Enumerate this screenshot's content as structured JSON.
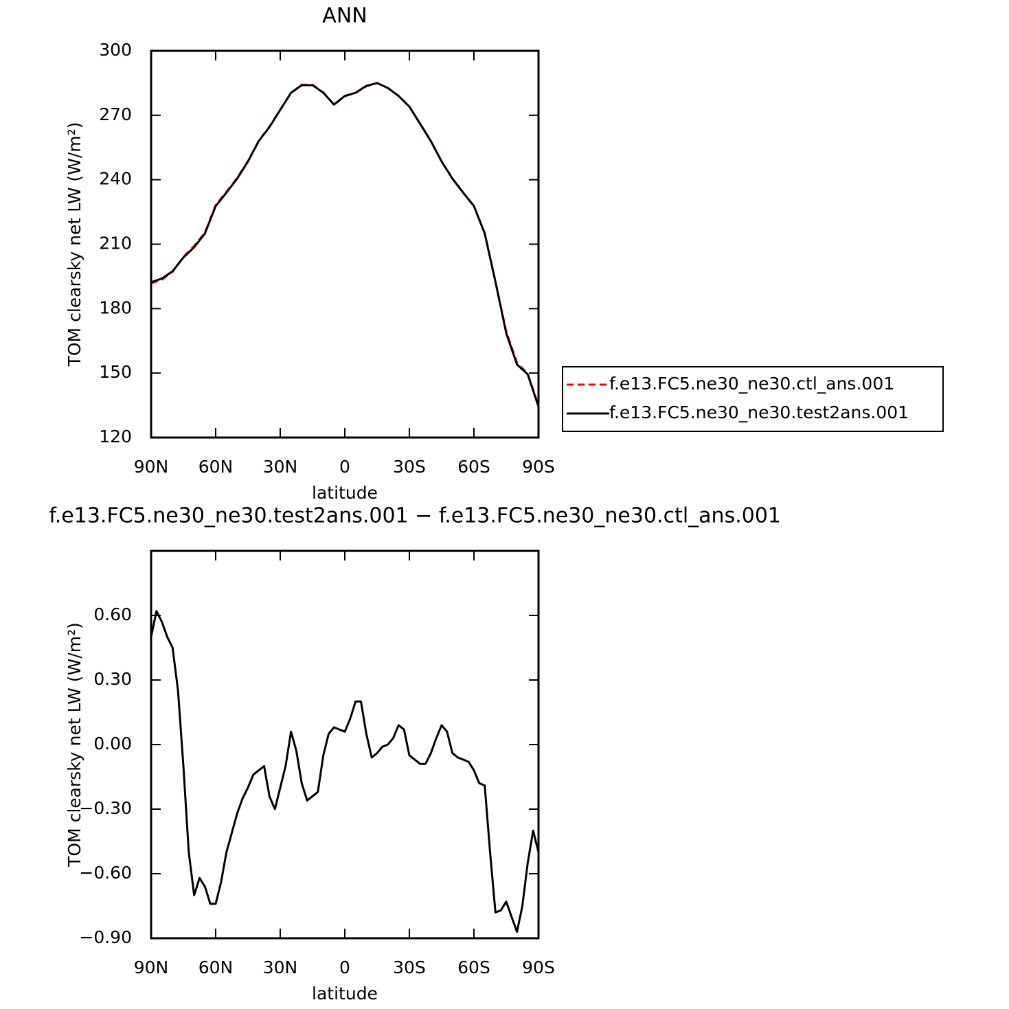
{
  "chart_data": [
    {
      "type": "line",
      "title": "ANN",
      "xlabel": "latitude",
      "ylabel": "TOM clearsky net LW (W/m²)",
      "xlim": [
        90,
        -90
      ],
      "ylim": [
        120,
        300
      ],
      "xticks": [
        {
          "value": 90,
          "label": "90N"
        },
        {
          "value": 60,
          "label": "60N"
        },
        {
          "value": 30,
          "label": "30N"
        },
        0,
        {
          "value": -30,
          "label": "30S"
        },
        {
          "value": -60,
          "label": "60S"
        },
        {
          "value": -90,
          "label": "90S"
        }
      ],
      "yticks": [
        120,
        150,
        180,
        210,
        240,
        270,
        300
      ],
      "legend": "right",
      "x": [
        90,
        85,
        80,
        75,
        70,
        65,
        60,
        55,
        50,
        45,
        40,
        35,
        30,
        25,
        20,
        15,
        10,
        5,
        0,
        -5,
        -10,
        -15,
        -20,
        -25,
        -30,
        -35,
        -40,
        -45,
        -50,
        -55,
        -60,
        -65,
        -70,
        -75,
        -80,
        -85,
        -90
      ],
      "series": [
        {
          "name": "f.e13.FC5.ne30_ne30.ctl_ans.001",
          "color": "#ff0000",
          "linestyle": "dashed",
          "values": [
            191.8,
            193.5,
            197.2,
            204.1,
            209.2,
            215.3,
            228.2,
            234.4,
            240.8,
            248.7,
            258.1,
            264.7,
            272.6,
            280.4,
            284.2,
            284.2,
            280.6,
            274.9,
            278.9,
            280.4,
            283.5,
            285.0,
            282.7,
            279.0,
            274.0,
            266.0,
            258.0,
            248.4,
            240.5,
            234.0,
            227.8,
            215.1,
            192.7,
            169.3,
            154.8,
            149.7,
            134.9
          ]
        },
        {
          "name": "f.e13.FC5.ne30_ne30.test2ans.001",
          "color": "#000000",
          "linestyle": "solid",
          "values": [
            192.3,
            194.0,
            197.4,
            203.8,
            208.6,
            215.0,
            227.7,
            234.0,
            240.5,
            248.5,
            258.0,
            264.5,
            272.5,
            280.5,
            284.0,
            284.0,
            280.5,
            275.0,
            279.0,
            280.5,
            283.7,
            285.0,
            282.7,
            279.0,
            274.0,
            266.0,
            258.0,
            248.5,
            240.5,
            234.0,
            227.7,
            215.0,
            192.5,
            168.6,
            154.0,
            149.4,
            134.4
          ]
        }
      ]
    },
    {
      "type": "line",
      "title": "f.e13.FC5.ne30_ne30.test2ans.001 − f.e13.FC5.ne30_ne30.ctl_ans.001",
      "xlabel": "latitude",
      "ylabel": "TOM clearsky net LW (W/m²)",
      "xlim": [
        90,
        -90
      ],
      "ylim": [
        -0.9,
        0.9
      ],
      "xticks": [
        {
          "value": 90,
          "label": "90N"
        },
        {
          "value": 60,
          "label": "60N"
        },
        {
          "value": 30,
          "label": "30N"
        },
        0,
        {
          "value": -30,
          "label": "30S"
        },
        {
          "value": -60,
          "label": "60S"
        },
        {
          "value": -90,
          "label": "90S"
        }
      ],
      "yticks": [
        {
          "value": -0.9,
          "label": "−0.90"
        },
        {
          "value": -0.6,
          "label": "−0.60"
        },
        {
          "value": -0.3,
          "label": "−0.30"
        },
        {
          "value": 0,
          "label": "0.00"
        },
        {
          "value": 0.3,
          "label": "0.30"
        },
        {
          "value": 0.6,
          "label": "0.60"
        }
      ],
      "x": [
        90,
        87.5,
        85,
        82.5,
        80,
        77.5,
        75,
        72.5,
        70,
        67.5,
        65,
        62.5,
        60,
        57.5,
        55,
        52.5,
        50,
        47.5,
        45,
        42.5,
        40,
        37.5,
        35,
        32.5,
        30,
        27.5,
        25,
        22.5,
        20,
        17.5,
        15,
        12.5,
        10,
        7.5,
        5,
        2.5,
        0,
        -2.5,
        -5,
        -7.5,
        -10,
        -12.5,
        -15,
        -17.5,
        -20,
        -22.5,
        -25,
        -27.5,
        -30,
        -32.5,
        -35,
        -37.5,
        -40,
        -42.5,
        -45,
        -47.5,
        -50,
        -52.5,
        -55,
        -57.5,
        -60,
        -62.5,
        -65,
        -67.5,
        -70,
        -72.5,
        -75,
        -77.5,
        -80,
        -82.5,
        -85,
        -87.5,
        -90
      ],
      "series": [
        {
          "color": "#000000",
          "linestyle": "solid",
          "values": [
            0.5,
            0.62,
            0.57,
            0.5,
            0.45,
            0.25,
            -0.1,
            -0.5,
            -0.7,
            -0.62,
            -0.66,
            -0.74,
            -0.74,
            -0.64,
            -0.5,
            -0.41,
            -0.32,
            -0.25,
            -0.2,
            -0.14,
            -0.12,
            -0.1,
            -0.24,
            -0.3,
            -0.2,
            -0.1,
            0.06,
            -0.03,
            -0.18,
            -0.26,
            -0.24,
            -0.22,
            -0.05,
            0.05,
            0.08,
            0.07,
            0.06,
            0.12,
            0.2,
            0.2,
            0.05,
            -0.06,
            -0.04,
            -0.01,
            0.0,
            0.03,
            0.09,
            0.07,
            -0.05,
            -0.07,
            -0.09,
            -0.09,
            -0.04,
            0.03,
            0.09,
            0.06,
            -0.04,
            -0.06,
            -0.07,
            -0.08,
            -0.12,
            -0.18,
            -0.19,
            -0.5,
            -0.78,
            -0.77,
            -0.73,
            -0.8,
            -0.87,
            -0.75,
            -0.55,
            -0.4,
            -0.5
          ]
        }
      ]
    }
  ]
}
